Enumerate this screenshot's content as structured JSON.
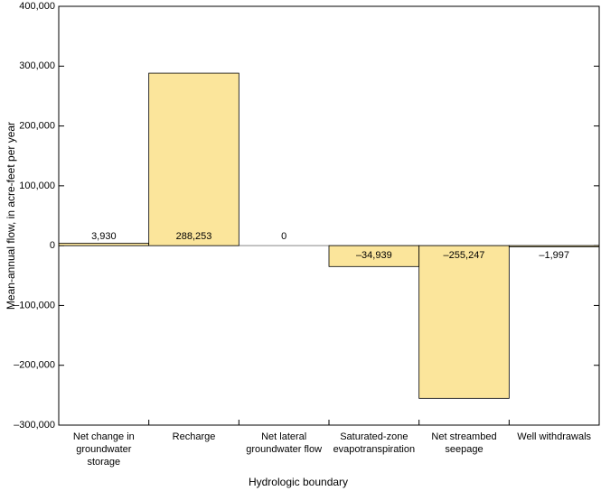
{
  "chart_data": {
    "type": "bar",
    "categories": [
      "Net change in groundwater storage",
      "Recharge",
      "Net lateral groundwater flow",
      "Saturated-zone evapotranspiration",
      "Net streambed seepage",
      "Well withdrawals"
    ],
    "values": [
      3930,
      288253,
      0,
      -34939,
      -255247,
      -1997
    ],
    "value_labels": [
      "3,930",
      "288,253",
      "0",
      "–34,939",
      "–255,247",
      "–1,997"
    ],
    "color": "#fbe59b",
    "ylim": [
      -300000,
      400000
    ],
    "yticks": [
      {
        "value": -300000,
        "label": "–300,000"
      },
      {
        "value": -200000,
        "label": "–200,000"
      },
      {
        "value": -100000,
        "label": "–100,000"
      },
      0,
      {
        "value": 100000,
        "label": "100,000"
      },
      {
        "value": 200000,
        "label": "200,000"
      },
      {
        "value": 300000,
        "label": "300,000"
      },
      {
        "value": 400000,
        "label": "400,000"
      }
    ],
    "y_label": "Mean-annual flow, in acre-feet per year",
    "x_label": "Hydrologic boundary"
  }
}
